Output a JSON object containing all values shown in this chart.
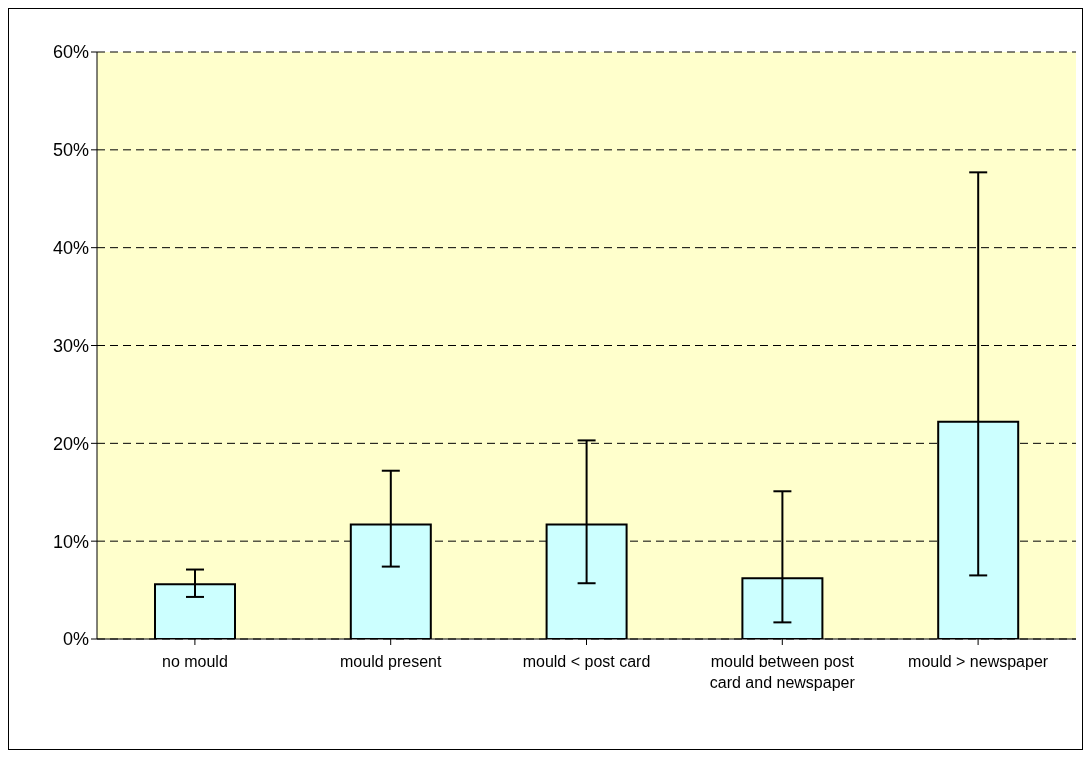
{
  "chart_data": {
    "type": "bar",
    "categories": [
      "no mould",
      "mould present",
      "mould < post card",
      "mould between post card and newspaper",
      "mould > newspaper"
    ],
    "values": [
      5.6,
      11.7,
      11.7,
      6.2,
      22.2
    ],
    "errors": [
      [
        4.3,
        7.1
      ],
      [
        7.4,
        17.2
      ],
      [
        5.7,
        20.3
      ],
      [
        1.7,
        15.1
      ],
      [
        6.5,
        47.7
      ]
    ],
    "color": "#ccffff",
    "ylim": [
      0,
      60
    ],
    "yticks": [
      {
        "value": 0,
        "label": "0%"
      },
      {
        "value": 10,
        "label": "10%"
      },
      {
        "value": 20,
        "label": "20%"
      },
      {
        "value": 30,
        "label": "30%"
      },
      {
        "value": 40,
        "label": "40%"
      },
      {
        "value": 50,
        "label": "50%"
      },
      {
        "value": 60,
        "label": "60%"
      }
    ],
    "grid": "y"
  }
}
